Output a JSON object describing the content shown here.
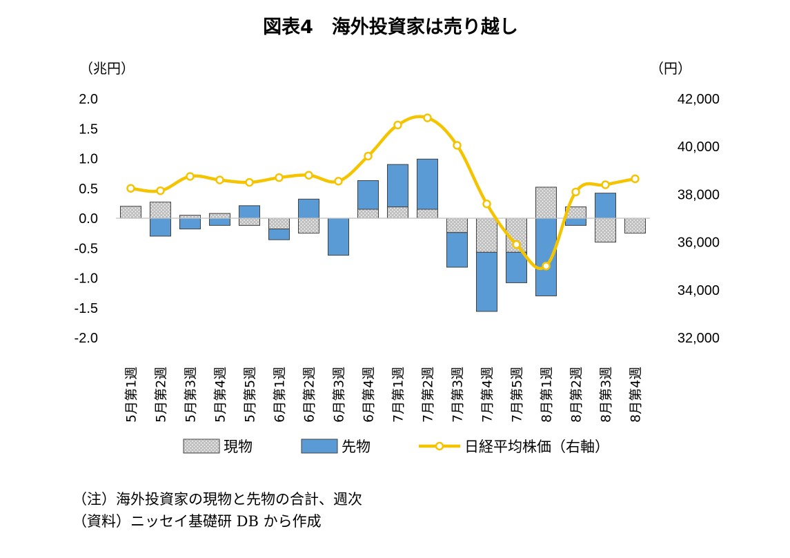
{
  "chart_data": {
    "type": "bar+line",
    "title": "図表4　海外投資家は売り越し",
    "left_axis_unit": "（兆円）",
    "right_axis_unit": "（円）",
    "left_ylim": [
      -2.0,
      2.0
    ],
    "right_ylim": [
      32000,
      42000
    ],
    "left_ticks": [
      "2.0",
      "1.5",
      "1.0",
      "0.5",
      "0.0",
      "-0.5",
      "-1.0",
      "-1.5",
      "-2.0"
    ],
    "left_tick_values": [
      2.0,
      1.5,
      1.0,
      0.5,
      0.0,
      -0.5,
      -1.0,
      -1.5,
      -2.0
    ],
    "right_ticks": [
      "42,000",
      "40,000",
      "38,000",
      "36,000",
      "34,000",
      "32,000"
    ],
    "right_tick_values": [
      42000,
      40000,
      38000,
      36000,
      34000,
      32000
    ],
    "categories": [
      "5月第1週",
      "5月第2週",
      "5月第3週",
      "5月第4週",
      "5月第5週",
      "6月第1週",
      "6月第2週",
      "6月第3週",
      "6月第4週",
      "7月第1週",
      "7月第2週",
      "7月第3週",
      "7月第4週",
      "7月第5週",
      "8月第1週",
      "8月第2週",
      "8月第3週",
      "8月第4週"
    ],
    "series": [
      {
        "name": "現物",
        "type": "stacked-bar",
        "axis": "left",
        "values": [
          0.2,
          0.27,
          0.05,
          0.08,
          -0.12,
          -0.18,
          -0.25,
          0.0,
          0.15,
          0.19,
          0.15,
          -0.24,
          -0.57,
          -0.57,
          0.52,
          0.19,
          -0.4,
          -0.25
        ]
      },
      {
        "name": "先物",
        "type": "stacked-bar",
        "axis": "left",
        "values": [
          0.0,
          -0.3,
          -0.18,
          -0.12,
          0.21,
          -0.18,
          0.32,
          -0.62,
          0.48,
          0.71,
          0.84,
          -0.58,
          -0.99,
          -0.51,
          -1.3,
          -0.12,
          0.42,
          0.0
        ]
      },
      {
        "name": "日経平均株価（右軸）",
        "type": "line",
        "axis": "right",
        "values": [
          38250,
          38150,
          38750,
          38600,
          38500,
          38700,
          38800,
          38550,
          39600,
          40900,
          41200,
          40050,
          37600,
          35900,
          35000,
          38100,
          38400,
          38650
        ]
      }
    ],
    "legend_position": "bottom",
    "colors": {
      "genbutsu": "#a6a6a6",
      "sakimono": "#5b9bd5",
      "nikkei": "#f5c400"
    }
  },
  "notes": [
    "（注）海外投資家の現物と先物の合計、週次",
    "（資料）ニッセイ基礎研 DB から作成"
  ]
}
